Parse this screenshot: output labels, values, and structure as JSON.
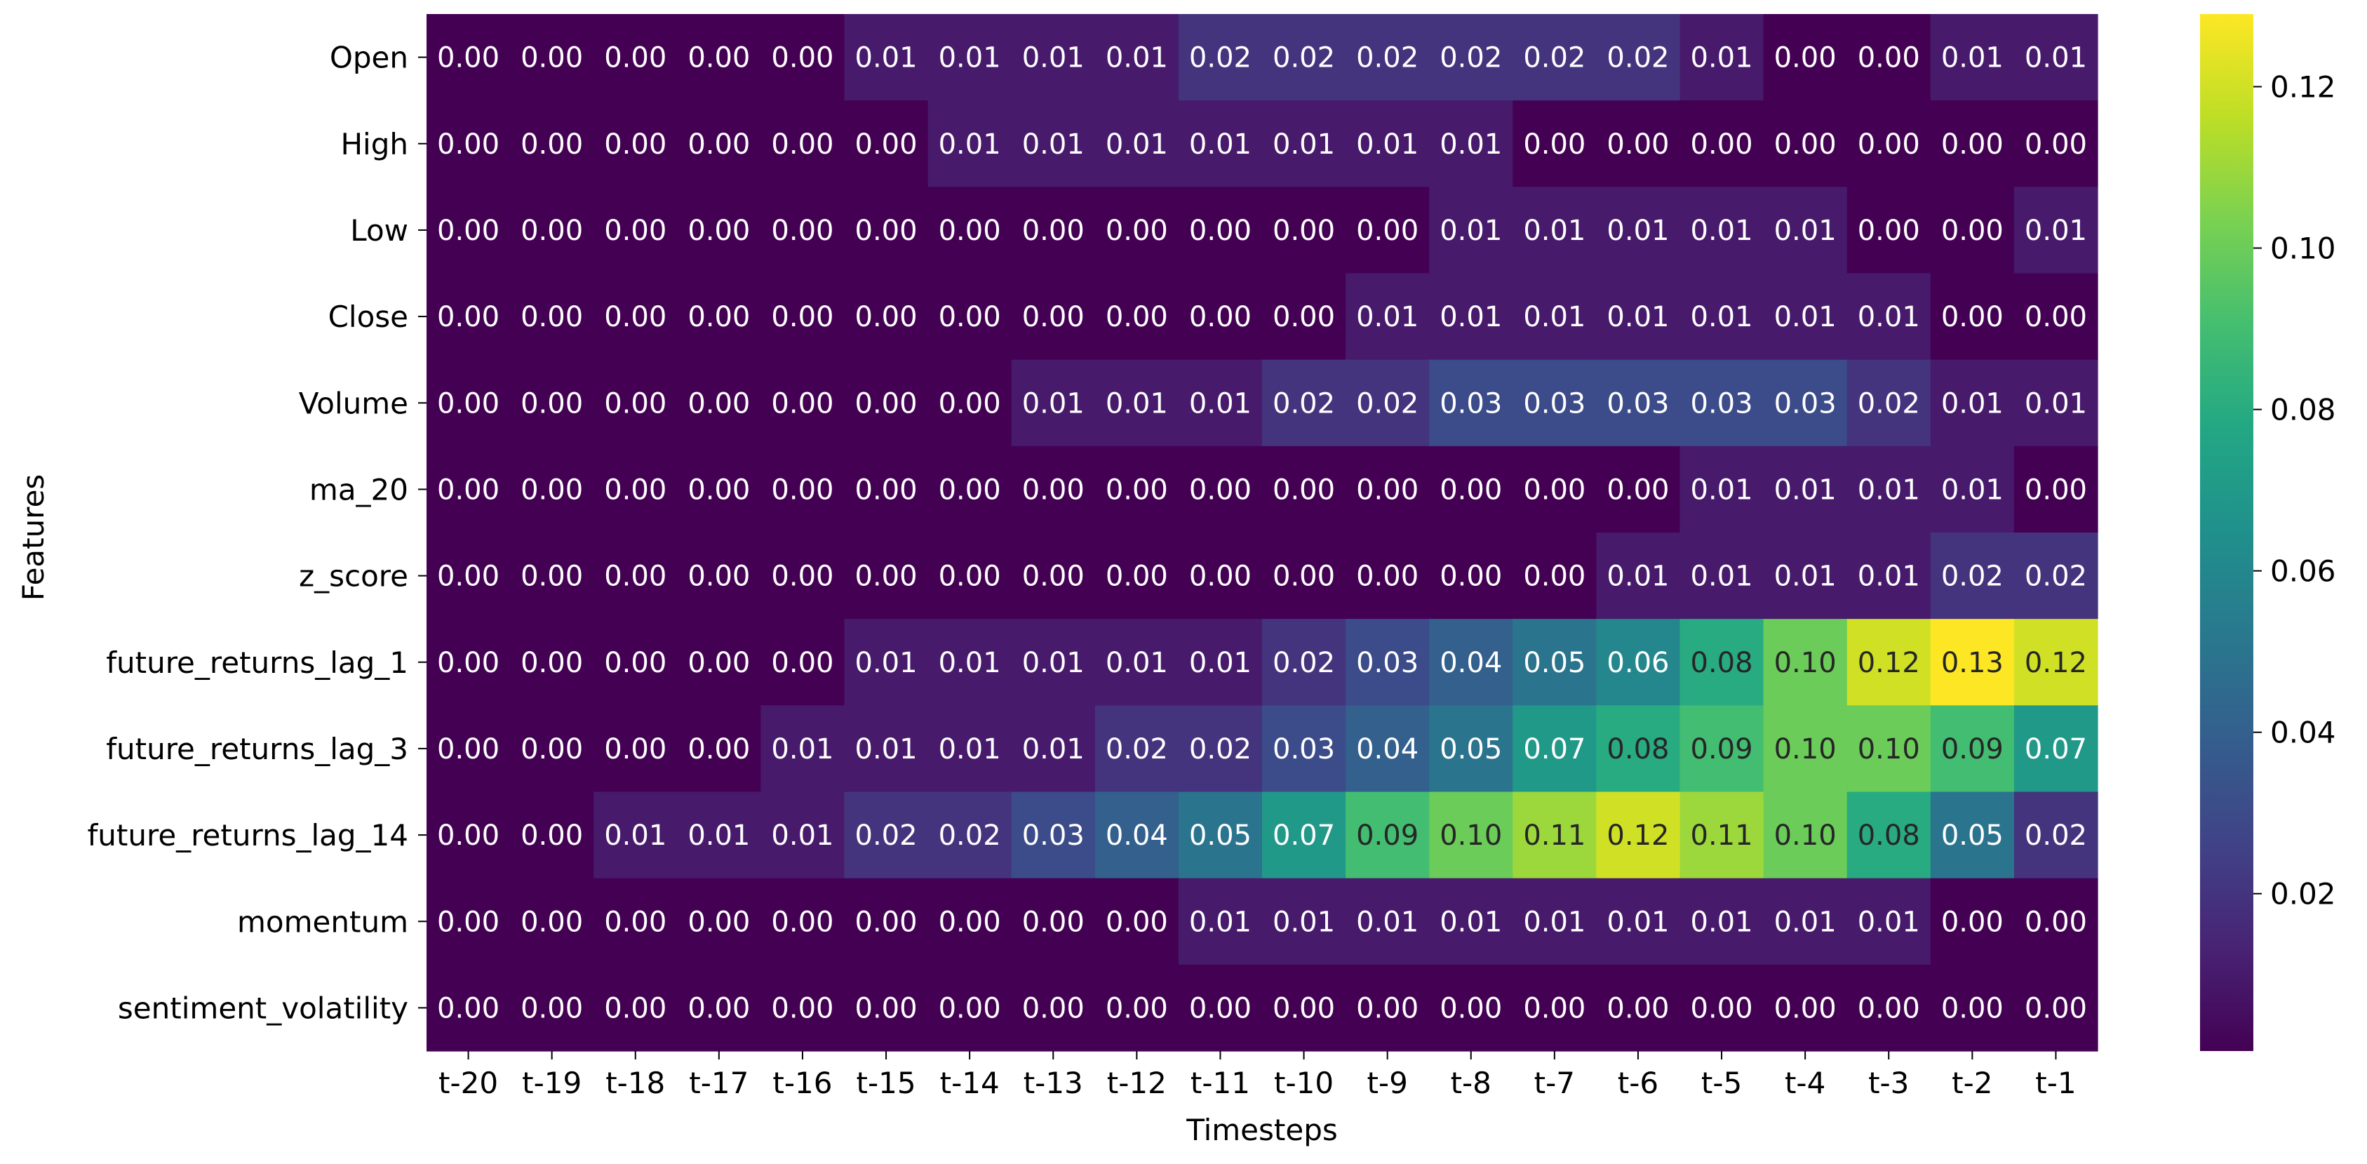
{
  "chart_data": {
    "type": "heatmap",
    "title": "",
    "xlabel": "Timesteps",
    "ylabel": "Features",
    "x_categories": [
      "t-20",
      "t-19",
      "t-18",
      "t-17",
      "t-16",
      "t-15",
      "t-14",
      "t-13",
      "t-12",
      "t-11",
      "t-10",
      "t-9",
      "t-8",
      "t-7",
      "t-6",
      "t-5",
      "t-4",
      "t-3",
      "t-2",
      "t-1"
    ],
    "y_categories": [
      "Open",
      "High",
      "Low",
      "Close",
      "Volume",
      "ma_20",
      "z_score",
      "future_returns_lag_1",
      "future_returns_lag_3",
      "future_returns_lag_14",
      "momentum",
      "sentiment_volatility"
    ],
    "values": [
      [
        0.0,
        0.0,
        0.0,
        0.0,
        0.0,
        0.01,
        0.01,
        0.01,
        0.01,
        0.02,
        0.02,
        0.02,
        0.02,
        0.02,
        0.02,
        0.01,
        0.0,
        0.0,
        0.01,
        0.01
      ],
      [
        0.0,
        0.0,
        0.0,
        0.0,
        0.0,
        0.0,
        0.01,
        0.01,
        0.01,
        0.01,
        0.01,
        0.01,
        0.01,
        0.0,
        0.0,
        0.0,
        0.0,
        0.0,
        0.0,
        0.0
      ],
      [
        0.0,
        0.0,
        0.0,
        0.0,
        0.0,
        0.0,
        0.0,
        0.0,
        0.0,
        0.0,
        0.0,
        0.0,
        0.01,
        0.01,
        0.01,
        0.01,
        0.01,
        0.0,
        0.0,
        0.01
      ],
      [
        0.0,
        0.0,
        0.0,
        0.0,
        0.0,
        0.0,
        0.0,
        0.0,
        0.0,
        0.0,
        0.0,
        0.01,
        0.01,
        0.01,
        0.01,
        0.01,
        0.01,
        0.01,
        0.0,
        0.0
      ],
      [
        0.0,
        0.0,
        0.0,
        0.0,
        0.0,
        0.0,
        0.0,
        0.01,
        0.01,
        0.01,
        0.02,
        0.02,
        0.03,
        0.03,
        0.03,
        0.03,
        0.03,
        0.02,
        0.01,
        0.01
      ],
      [
        0.0,
        0.0,
        0.0,
        0.0,
        0.0,
        0.0,
        0.0,
        0.0,
        0.0,
        0.0,
        0.0,
        0.0,
        0.0,
        0.0,
        0.0,
        0.01,
        0.01,
        0.01,
        0.01,
        0.0
      ],
      [
        0.0,
        0.0,
        0.0,
        0.0,
        0.0,
        0.0,
        0.0,
        0.0,
        0.0,
        0.0,
        0.0,
        0.0,
        0.0,
        0.0,
        0.01,
        0.01,
        0.01,
        0.01,
        0.02,
        0.02
      ],
      [
        0.0,
        0.0,
        0.0,
        0.0,
        0.0,
        0.01,
        0.01,
        0.01,
        0.01,
        0.01,
        0.02,
        0.03,
        0.04,
        0.05,
        0.06,
        0.08,
        0.1,
        0.12,
        0.13,
        0.12
      ],
      [
        0.0,
        0.0,
        0.0,
        0.0,
        0.01,
        0.01,
        0.01,
        0.01,
        0.02,
        0.02,
        0.03,
        0.04,
        0.05,
        0.07,
        0.08,
        0.09,
        0.1,
        0.1,
        0.09,
        0.07
      ],
      [
        0.0,
        0.0,
        0.01,
        0.01,
        0.01,
        0.02,
        0.02,
        0.03,
        0.04,
        0.05,
        0.07,
        0.09,
        0.1,
        0.11,
        0.12,
        0.11,
        0.1,
        0.08,
        0.05,
        0.02
      ],
      [
        0.0,
        0.0,
        0.0,
        0.0,
        0.0,
        0.0,
        0.0,
        0.0,
        0.0,
        0.01,
        0.01,
        0.01,
        0.01,
        0.01,
        0.01,
        0.01,
        0.01,
        0.01,
        0.0,
        0.0
      ],
      [
        0.0,
        0.0,
        0.0,
        0.0,
        0.0,
        0.0,
        0.0,
        0.0,
        0.0,
        0.0,
        0.0,
        0.0,
        0.0,
        0.0,
        0.0,
        0.0,
        0.0,
        0.0,
        0.0,
        0.0
      ]
    ],
    "value_range": [
      0.0005,
      0.129
    ],
    "colormap": "viridis",
    "colorbar_ticks": [
      0.02,
      0.04,
      0.06,
      0.08,
      0.1,
      0.12
    ],
    "colorbar_tick_labels": [
      "0.02",
      "0.04",
      "0.06",
      "0.08",
      "0.10",
      "0.12"
    ],
    "annotations": true,
    "grid": false,
    "legend": "colorbar-right"
  }
}
